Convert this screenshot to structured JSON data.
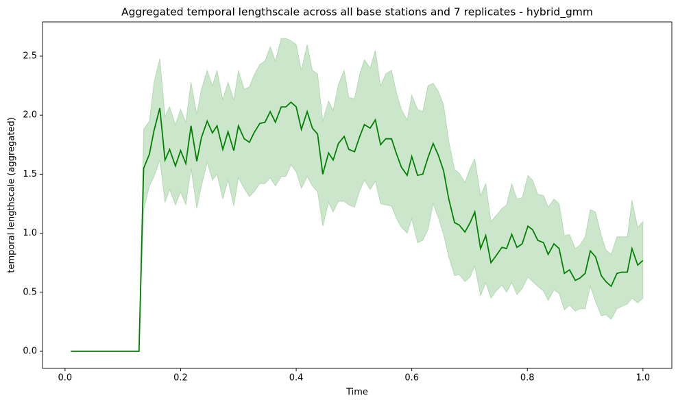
{
  "chart_data": {
    "type": "line",
    "title": "Aggregated temporal lengthscale across all base stations and 7 replicates - hybrid_gmm",
    "xlabel": "Time",
    "ylabel": "temporal lengthscale (aggregated)",
    "x": [
      0.01,
      0.128,
      0.136,
      0.146,
      0.154,
      0.164,
      0.173,
      0.181,
      0.191,
      0.2,
      0.209,
      0.218,
      0.228,
      0.236,
      0.246,
      0.255,
      0.263,
      0.273,
      0.282,
      0.292,
      0.3,
      0.31,
      0.319,
      0.327,
      0.337,
      0.346,
      0.355,
      0.364,
      0.374,
      0.382,
      0.391,
      0.4,
      0.409,
      0.419,
      0.428,
      0.437,
      0.446,
      0.456,
      0.464,
      0.473,
      0.483,
      0.491,
      0.501,
      0.51,
      0.518,
      0.528,
      0.537,
      0.546,
      0.555,
      0.565,
      0.573,
      0.582,
      0.592,
      0.6,
      0.61,
      0.619,
      0.628,
      0.637,
      0.646,
      0.655,
      0.664,
      0.674,
      0.682,
      0.692,
      0.701,
      0.709,
      0.719,
      0.728,
      0.737,
      0.746,
      0.756,
      0.764,
      0.773,
      0.782,
      0.791,
      0.801,
      0.809,
      0.818,
      0.828,
      0.836,
      0.846,
      0.855,
      0.864,
      0.873,
      0.883,
      0.891,
      0.9,
      0.909,
      0.918,
      0.928,
      0.936,
      0.945,
      0.955,
      0.963,
      0.973,
      0.981,
      0.991,
      1.0
    ],
    "series": [
      {
        "color": "#008000",
        "values": [
          0,
          0,
          1.55,
          1.67,
          1.87,
          2.06,
          1.62,
          1.71,
          1.57,
          1.7,
          1.59,
          1.91,
          1.61,
          1.81,
          1.95,
          1.85,
          1.91,
          1.71,
          1.86,
          1.7,
          1.91,
          1.8,
          1.77,
          1.85,
          1.93,
          1.94,
          2.03,
          1.94,
          2.07,
          2.07,
          2.11,
          2.07,
          1.88,
          2.03,
          1.89,
          1.84,
          1.5,
          1.68,
          1.62,
          1.76,
          1.82,
          1.71,
          1.69,
          1.82,
          1.92,
          1.89,
          1.96,
          1.75,
          1.8,
          1.8,
          1.68,
          1.56,
          1.49,
          1.65,
          1.49,
          1.5,
          1.64,
          1.76,
          1.66,
          1.53,
          1.29,
          1.09,
          1.07,
          1.01,
          1.09,
          1.18,
          0.87,
          0.98,
          0.75,
          0.81,
          0.88,
          0.87,
          0.99,
          0.88,
          0.91,
          1.06,
          1.03,
          0.94,
          0.92,
          0.82,
          0.91,
          0.87,
          0.66,
          0.69,
          0.6,
          0.62,
          0.66,
          0.85,
          0.8,
          0.64,
          0.59,
          0.55,
          0.66,
          0.67,
          0.67,
          0.87,
          0.73,
          0.77
        ]
      }
    ],
    "band": {
      "color": "#008000",
      "opacity": 0.2,
      "lower": [
        0,
        0,
        1.2,
        1.4,
        1.48,
        1.62,
        1.26,
        1.37,
        1.24,
        1.35,
        1.24,
        1.55,
        1.21,
        1.4,
        1.6,
        1.45,
        1.5,
        1.29,
        1.45,
        1.23,
        1.47,
        1.38,
        1.31,
        1.35,
        1.42,
        1.42,
        1.47,
        1.4,
        1.48,
        1.48,
        1.58,
        1.52,
        1.38,
        1.48,
        1.4,
        1.35,
        1.06,
        1.26,
        1.18,
        1.27,
        1.27,
        1.24,
        1.22,
        1.36,
        1.45,
        1.37,
        1.44,
        1.25,
        1.24,
        1.23,
        1.13,
        1.05,
        1.0,
        1.12,
        0.92,
        0.94,
        1.03,
        1.25,
        1.13,
        0.99,
        0.8,
        0.64,
        0.65,
        0.59,
        0.63,
        0.72,
        0.47,
        0.58,
        0.45,
        0.51,
        0.56,
        0.5,
        0.58,
        0.48,
        0.53,
        0.63,
        0.59,
        0.55,
        0.51,
        0.43,
        0.52,
        0.49,
        0.35,
        0.39,
        0.34,
        0.36,
        0.36,
        0.55,
        0.42,
        0.3,
        0.31,
        0.27,
        0.36,
        0.38,
        0.4,
        0.45,
        0.41,
        0.45
      ],
      "upper": [
        0,
        0,
        1.88,
        1.95,
        2.28,
        2.48,
        1.99,
        2.07,
        1.92,
        2.05,
        1.94,
        2.28,
        2.01,
        2.22,
        2.38,
        2.25,
        2.38,
        2.13,
        2.28,
        2.13,
        2.38,
        2.22,
        2.24,
        2.34,
        2.43,
        2.46,
        2.58,
        2.46,
        2.65,
        2.65,
        2.63,
        2.6,
        2.38,
        2.6,
        2.38,
        2.35,
        1.95,
        2.12,
        2.04,
        2.26,
        2.38,
        2.15,
        2.14,
        2.35,
        2.47,
        2.4,
        2.55,
        2.25,
        2.35,
        2.38,
        2.2,
        2.05,
        1.96,
        2.17,
        2.05,
        2.03,
        2.25,
        2.27,
        2.2,
        2.09,
        1.78,
        1.54,
        1.51,
        1.43,
        1.55,
        1.63,
        1.32,
        1.42,
        1.1,
        1.15,
        1.21,
        1.24,
        1.42,
        1.29,
        1.3,
        1.49,
        1.45,
        1.33,
        1.32,
        1.22,
        1.29,
        1.25,
        0.98,
        0.99,
        0.87,
        0.9,
        0.97,
        1.2,
        1.18,
        0.98,
        0.86,
        0.82,
        0.97,
        0.97,
        0.97,
        1.28,
        1.05,
        1.1
      ]
    },
    "xlim": [
      -0.039,
      1.05
    ],
    "ylim": [
      -0.145,
      2.79
    ],
    "xticks": [
      {
        "value": 0,
        "label": "0.0"
      },
      0.2,
      0.4,
      0.6,
      0.8,
      {
        "value": 1,
        "label": "1.0"
      }
    ],
    "yticks": [
      {
        "value": 0,
        "label": "0.0"
      },
      0.5,
      {
        "value": 1,
        "label": "1.0"
      },
      1.5,
      {
        "value": 2,
        "label": "2.0"
      },
      2.5
    ],
    "grid": false
  }
}
